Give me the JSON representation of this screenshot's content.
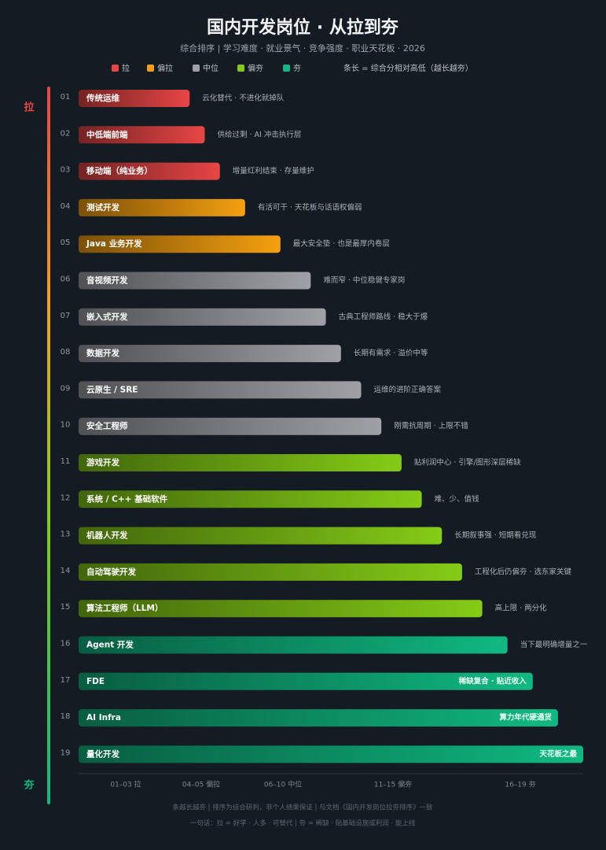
{
  "chart_data": {
    "type": "bar",
    "title": "国内开发岗位 · 从拉到夯",
    "subtitle": "综合排序 | 学习难度 · 就业景气 · 竞争强度 · 职业天花板  ·  2026",
    "legend_note": "条长 = 综合分相对高低（越长越夯）",
    "axis_top": "拉",
    "axis_bottom": "夯",
    "xlim": [
      0,
      100
    ],
    "series": [
      {
        "name": "拉",
        "color": "#e84545",
        "ranks": [
          "01",
          "02",
          "03"
        ],
        "categories": [
          "传统运维",
          "中低端前端",
          "移动端（纯业务）"
        ],
        "notes": [
          "云化替代 · 不进化就掉队",
          "供给过剩 · AI 冲击执行层",
          "增量红利结束 · 存量维护"
        ],
        "values": [
          22,
          25,
          28
        ]
      },
      {
        "name": "偏拉",
        "color": "#f5a00f",
        "ranks": [
          "04",
          "05"
        ],
        "categories": [
          "测试开发",
          "Java 业务开发"
        ],
        "notes": [
          "有活可干 · 天花板与话语权偏弱",
          "最大安全垫 · 也是最厚内卷层"
        ],
        "values": [
          33,
          40
        ]
      },
      {
        "name": "中位",
        "color": "#a0a1a8",
        "ranks": [
          "06",
          "07",
          "08",
          "09",
          "10"
        ],
        "categories": [
          "音视频开发",
          "嵌入式开发",
          "数据开发",
          "云原生 / SRE",
          "安全工程师"
        ],
        "notes": [
          "难而窄 · 中位稳健专家岗",
          "古典工程师路线 · 稳大于爆",
          "长期有需求 · 溢价中等",
          "运维的进阶正确答案",
          "刚需抗周期 · 上限不错"
        ],
        "values": [
          46,
          49,
          52,
          56,
          60
        ]
      },
      {
        "name": "偏夯",
        "color": "#84cc16",
        "ranks": [
          "11",
          "12",
          "13",
          "14",
          "15"
        ],
        "categories": [
          "游戏开发",
          "系统 / C++ 基础软件",
          "机器人开发",
          "自动驾驶开发",
          "算法工程师（LLM）"
        ],
        "notes": [
          "贴利润中心 · 引擎/图形深层稀缺",
          "难、少、值钱",
          "长期叙事强 · 短期看兑现",
          "工程化后仍偏夯 · 选东家关键",
          "高上限 · 两分化"
        ],
        "values": [
          64,
          68,
          72,
          76,
          80
        ]
      },
      {
        "name": "夯",
        "color": "#10b981",
        "ranks": [
          "16",
          "17",
          "18",
          "19"
        ],
        "categories": [
          "Agent 开发",
          "FDE",
          "AI Infra",
          "量化开发"
        ],
        "notes": [
          "当下最明确增量之一",
          "稀缺复合 · 贴近收入",
          "算力年代硬通货",
          "天花板之最"
        ],
        "values": [
          85,
          90,
          95,
          100
        ]
      }
    ],
    "group_labels": [
      "01–03 拉",
      "04–05 偏拉",
      "06–10 中位",
      "11–15 偏夯",
      "16–19 夯"
    ],
    "footer": [
      "条越长越夯 | 排序为综合研判，非个人绩果保证 | 与文档《国内开发岗位拉夯排序》一致",
      "一句话：拉 = 好学 · 人多 · 可替代   |   夯 = 稀缺 · 贴基础设施或利润 · 能上线"
    ]
  }
}
